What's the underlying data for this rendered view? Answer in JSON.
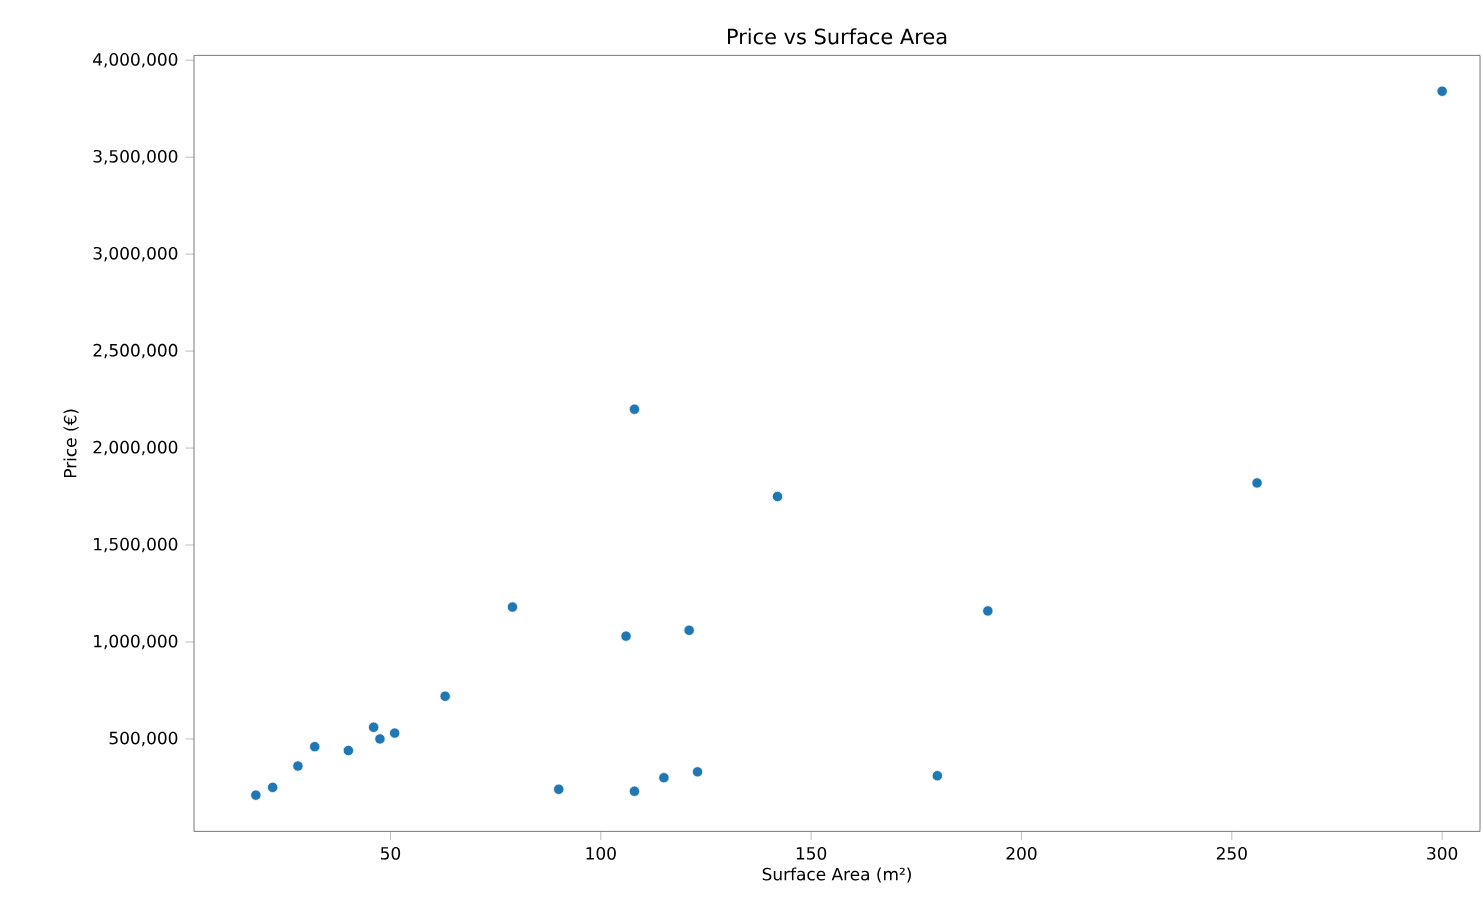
{
  "chart_data": {
    "type": "scatter",
    "title": "Price vs Surface Area",
    "xlabel": "Surface Area (m²)",
    "ylabel": "Price (€)",
    "xlim": [
      3.3,
      309
    ],
    "ylim": [
      23000,
      4025000
    ],
    "xticks": [
      50,
      100,
      150,
      200,
      250,
      300
    ],
    "yticks": [
      {
        "value": 500000,
        "label": "500,000"
      },
      {
        "value": 1000000,
        "label": "1,000,000"
      },
      {
        "value": 1500000,
        "label": "1,500,000"
      },
      {
        "value": 2000000,
        "label": "2,000,000"
      },
      {
        "value": 2500000,
        "label": "2,500,000"
      },
      {
        "value": 3000000,
        "label": "3,000,000"
      },
      {
        "value": 3500000,
        "label": "3,500,000"
      },
      {
        "value": 4000000,
        "label": "4,000,000"
      }
    ],
    "grid": false,
    "series": [
      {
        "color": "#1f77b4",
        "x": [
          18,
          22,
          28,
          32,
          40,
          46,
          47.5,
          51,
          63,
          79,
          90,
          106,
          121,
          108,
          115,
          123,
          108,
          142,
          256,
          192,
          180,
          300
        ],
        "values": [
          210000,
          250000,
          360000,
          460000,
          440000,
          560000,
          500000,
          530000,
          720000,
          1180000,
          240000,
          1030000,
          1060000,
          230000,
          300000,
          330000,
          2200000,
          1750000,
          1820000,
          1160000,
          310000,
          3840000
        ]
      }
    ]
  }
}
